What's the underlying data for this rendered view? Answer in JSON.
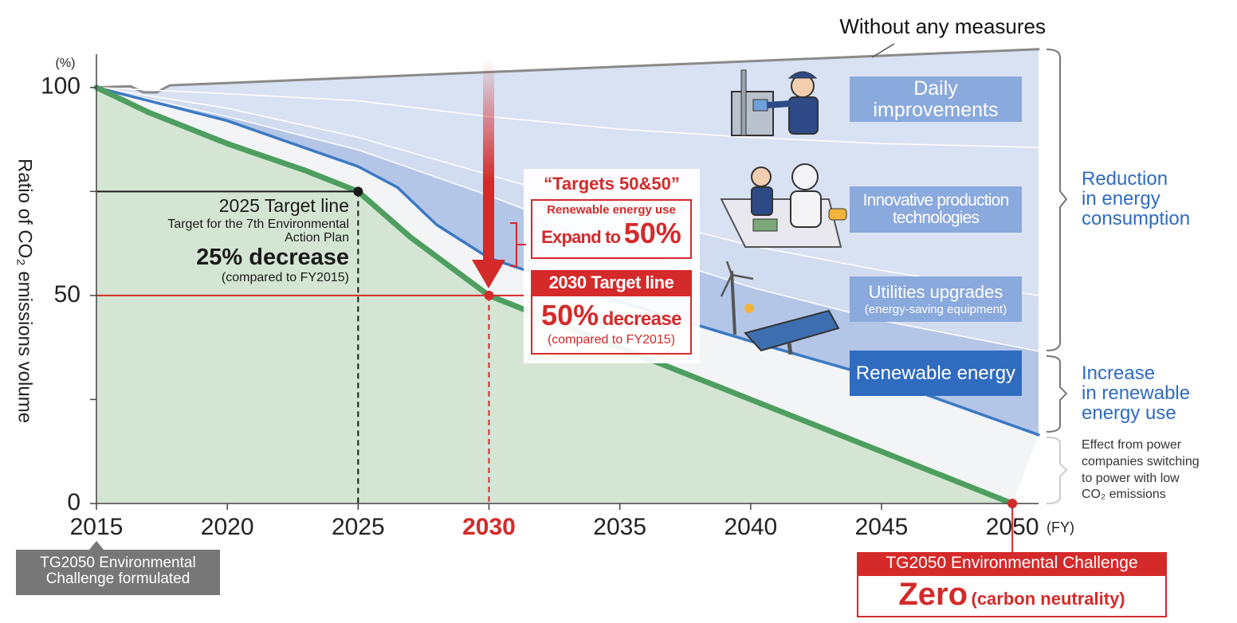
{
  "chart_data": {
    "type": "area",
    "unit_label": "(%)",
    "y_axis_label": "Ratio of CO₂ emissions volume",
    "x_axis_unit": "(FY)",
    "xlim": [
      2015,
      2051
    ],
    "ylim": [
      0,
      108
    ],
    "xticks": [
      2015,
      2020,
      2025,
      2030,
      2035,
      2040,
      2045,
      2050
    ],
    "highlight_xtick": 2030,
    "highlight_color": "#d42a2a",
    "yticks": [
      0,
      50,
      100
    ],
    "minor_yticks": [
      25,
      75
    ],
    "series": [
      {
        "name": "Without any measures",
        "color": "#8a8a8a",
        "fill": "#d9e2f3",
        "x": [
          2015,
          2016.3,
          2016.8,
          2017.3,
          2017.8,
          2051
        ],
        "values": [
          100,
          100.3,
          98.8,
          98.8,
          100.5,
          109.2
        ]
      },
      {
        "color": "#ffffff",
        "fill": "#d9e2f3",
        "x": [
          2015,
          2020,
          2025,
          2030,
          2035,
          2040,
          2045,
          2051
        ],
        "values": [
          100,
          98.5,
          96.8,
          93,
          90,
          88,
          86.5,
          85.6
        ]
      },
      {
        "color": "#ffffff",
        "fill": "#d2dcf0",
        "x": [
          2015,
          2020,
          2025,
          2030,
          2035,
          2040,
          2045,
          2051
        ],
        "values": [
          100,
          95,
          88,
          79,
          70,
          62,
          56,
          50
        ]
      },
      {
        "color": "#ffffff",
        "fill": "#b4c6e7",
        "x": [
          2015,
          2020,
          2025,
          2030,
          2035,
          2040,
          2045,
          2051
        ],
        "values": [
          100,
          93,
          85,
          74,
          62,
          52,
          44,
          36.6
        ]
      },
      {
        "color": "#3b79c4",
        "fill": "#f3f4f6",
        "x": [
          2015,
          2020,
          2025,
          2026.5,
          2028,
          2030,
          2035,
          2040,
          2045,
          2051
        ],
        "values": [
          100,
          92,
          81,
          76,
          67,
          59,
          48.5,
          39,
          30,
          16.5
        ]
      },
      {
        "color": "#4e9f5f",
        "fill": "#d4e6d3",
        "x": [
          2015,
          2017,
          2020,
          2023,
          2025,
          2027,
          2030,
          2050
        ],
        "values": [
          100,
          94,
          86.5,
          80,
          75,
          64,
          50,
          0
        ]
      }
    ],
    "targets": [
      {
        "x": 2025,
        "value": 75,
        "color": "#1a1a1a"
      },
      {
        "x": 2030,
        "value": 50,
        "color": "#d42a2a"
      },
      {
        "x": 2050,
        "value": 0,
        "color": "#d42a2a"
      }
    ],
    "annotations": {
      "daily": [
        "Daily",
        "improvements"
      ],
      "innovative": [
        "Innovative production",
        "technologies"
      ],
      "utilities": "Utilities upgrades",
      "utilities_note": "(energy-saving equipment)",
      "renewable": "Renewable energy",
      "reduction": [
        "Reduction",
        "in energy",
        "consumption"
      ],
      "increase": [
        "Increase",
        "in renewable",
        "energy use"
      ],
      "effect": [
        "Effect from power",
        "companies switching",
        "to power with low",
        "CO₂ emissions"
      ],
      "t2025_title": "2025 Target line",
      "t2025_note": [
        "Target for the 7th Environmental",
        "Action Plan"
      ],
      "t2025_value": "25% decrease",
      "t2025_compare": "(compared to FY2015)",
      "t5050_title": "“Targets 50&50”",
      "t5050_sub": "Renewable energy use",
      "t5050_expand": "Expand to",
      "t5050_value": "50%",
      "t2030_title": "2030 Target line",
      "t2030_value": "50%",
      "t2030_word": "decrease",
      "t2030_compare": "(compared to FY2015)",
      "formulated": [
        "TG2050 Environmental",
        "Challenge formulated"
      ],
      "challenge": "TG2050 Environmental Challenge",
      "zero": "Zero",
      "neutrality": "(carbon neutrality)"
    }
  }
}
